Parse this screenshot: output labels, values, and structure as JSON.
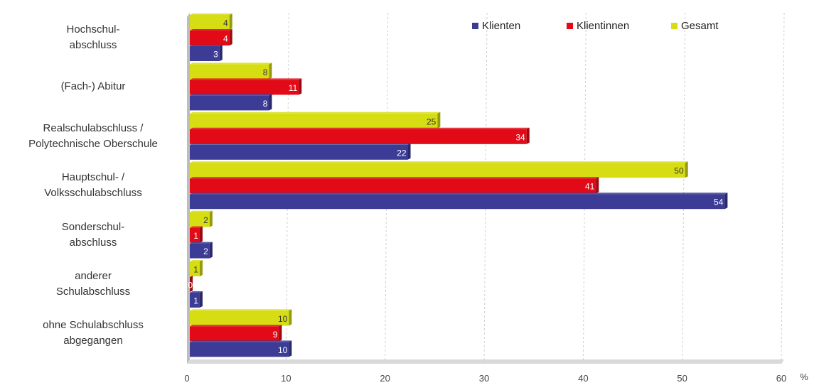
{
  "chart_data": {
    "type": "bar",
    "orientation": "horizontal",
    "categories": [
      [
        "Hochschul-",
        "abschluss"
      ],
      [
        "(Fach-) Abitur"
      ],
      [
        "Realschulabschluss /",
        "Polytechnische Oberschule"
      ],
      [
        "Hauptschul- /",
        "Volksschulabschluss"
      ],
      [
        "Sonderschul-",
        "abschluss"
      ],
      [
        "anderer",
        "Schulabschluss"
      ],
      [
        "ohne Schulabschluss",
        "abgegangen"
      ]
    ],
    "series": [
      {
        "name": "Gesamt",
        "color": "#d6de13",
        "labelColor": "#333333",
        "values": [
          4,
          8,
          25,
          50,
          2,
          1,
          10
        ]
      },
      {
        "name": "Klientinnen",
        "color": "#e10a16",
        "labelColor": "#ffffff",
        "values": [
          4,
          11,
          34,
          41,
          1,
          0,
          9
        ]
      },
      {
        "name": "Klienten",
        "color": "#3c3c96",
        "labelColor": "#ffffff",
        "values": [
          3,
          8,
          22,
          54,
          2,
          1,
          10
        ]
      }
    ],
    "legend_order": [
      "Klienten",
      "Klientinnen",
      "Gesamt"
    ],
    "legend_position": "top-right",
    "xlim": [
      0,
      60
    ],
    "xticks": [
      0,
      10,
      20,
      30,
      40,
      50,
      60
    ],
    "xunit": "%",
    "grid": true
  }
}
